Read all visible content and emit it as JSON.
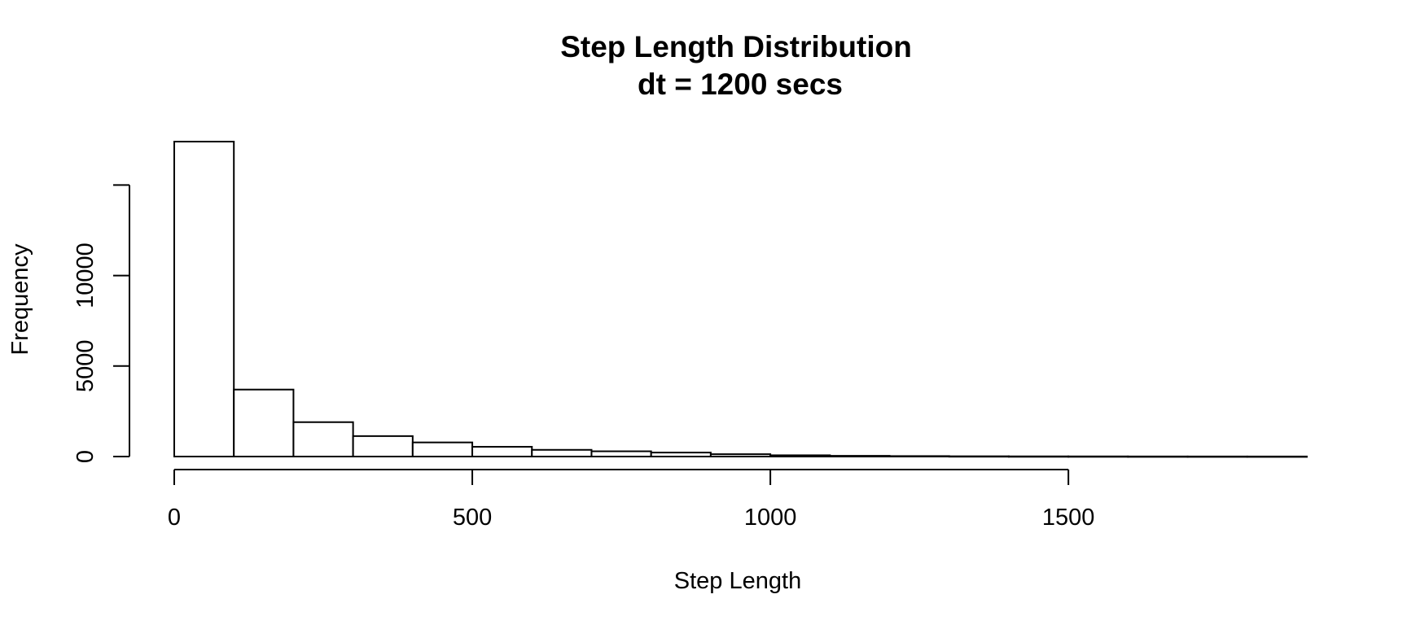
{
  "chart_data": {
    "type": "bar",
    "title": "Step Length Distribution",
    "subtitle": "dt = 1200 secs",
    "xlabel": "Step Length",
    "ylabel": "Frequency",
    "bin_width": 100,
    "bins_start": [
      0,
      100,
      200,
      300,
      400,
      500,
      600,
      700,
      800,
      900,
      1000,
      1100,
      1200,
      1300,
      1400,
      1500,
      1600,
      1700,
      1800
    ],
    "values": [
      17400,
      3700,
      1900,
      1130,
      780,
      540,
      370,
      290,
      220,
      130,
      70,
      40,
      25,
      15,
      10,
      8,
      5,
      4,
      3
    ],
    "xlim": [
      0,
      1900
    ],
    "ylim": [
      0,
      17400
    ],
    "x_ticks": [
      0,
      500,
      1000,
      1500
    ],
    "y_ticks": [
      0,
      5000,
      10000
    ],
    "y_axis_max": 15000,
    "grid": false,
    "legend": "none"
  }
}
